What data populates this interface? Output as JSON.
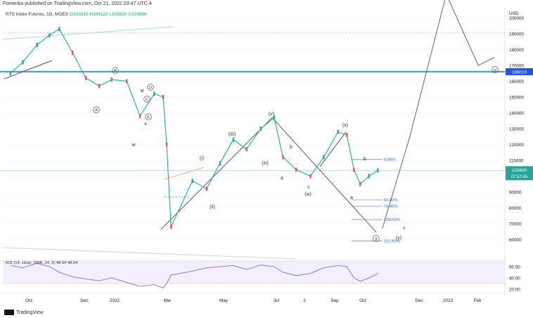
{
  "header": {
    "publisher": "Fomenka published on TradingView.com, Oct 21, 2022 03:47 UTC-4",
    "symbol": "RTS Index Futures, 1D, MOEX",
    "ohlc": "O103310  H104110  L103010  C103600"
  },
  "footer": {
    "brand": "TradingView"
  },
  "chart_data": {
    "type": "candlestick",
    "title": "RTS Index Futures, 1D, MOEX",
    "currency": "USD",
    "yticks": [
      60000,
      70000,
      80000,
      90000,
      100000,
      110000,
      120000,
      130000,
      140000,
      150000,
      160000,
      170000,
      180000,
      190000,
      200000
    ],
    "ytick_labels": [
      "60000",
      "70000",
      "80000",
      "90000",
      "100000",
      "110000",
      "120000",
      "130000",
      "140000",
      "150000",
      "160000",
      "170000",
      "180000",
      "190000",
      "200000"
    ],
    "ylim": [
      57000,
      206000
    ],
    "xticks": [
      "Oct",
      "Dec",
      "2022",
      "Mar",
      "May",
      "Jul",
      "2",
      "Sep",
      "Oct",
      "Dec",
      "2023",
      "Feb"
    ],
    "price_series": {
      "name": "RTS Index Futures",
      "dates": [
        "2021-09-01",
        "2021-09-15",
        "2021-10-01",
        "2021-10-15",
        "2021-10-26",
        "2021-11-10",
        "2021-11-25",
        "2021-12-10",
        "2021-12-24",
        "2022-01-10",
        "2022-01-25",
        "2022-02-10",
        "2022-02-20",
        "2022-02-24",
        "2022-03-01",
        "2022-03-25",
        "2022-04-10",
        "2022-04-25",
        "2022-05-10",
        "2022-05-25",
        "2022-06-10",
        "2022-06-25",
        "2022-07-05",
        "2022-07-20",
        "2022-08-05",
        "2022-08-20",
        "2022-09-05",
        "2022-09-15",
        "2022-09-23",
        "2022-09-30",
        "2022-10-10",
        "2022-10-20"
      ],
      "values": [
        165000,
        172000,
        183000,
        189000,
        193000,
        178000,
        162000,
        157000,
        161000,
        160000,
        138000,
        152000,
        150000,
        120000,
        68000,
        97000,
        92000,
        108000,
        123000,
        117000,
        130000,
        137000,
        112000,
        104000,
        100000,
        112000,
        128000,
        126000,
        104000,
        95000,
        100000,
        103600
      ]
    },
    "last_price": "103600",
    "countdown": "07:57:45",
    "resistance_level": "166010",
    "fib_levels": [
      {
        "label": "0.00%",
        "price": 110500
      },
      {
        "label": "61.80%",
        "price": 85000
      },
      {
        "label": "76.40%",
        "price": 81000
      },
      {
        "label": "100.00%",
        "price": 72500
      },
      {
        "label": "161.80%",
        "price": 59000
      }
    ],
    "wave_labels": [
      "A",
      "B",
      "C",
      "D",
      "E",
      "w",
      "x",
      "w",
      "(i)",
      "(ii)",
      "(III)",
      "(iv)",
      "(v)",
      "a",
      "b",
      "c",
      "(w)",
      "(x)",
      "(y)",
      "a",
      "b",
      "c",
      "ii",
      "iv"
    ],
    "projection_path": {
      "dates": [
        "2022-10-25",
        "2022-11-25",
        "2023-01-05",
        "2023-02-10",
        "2023-02-28"
      ],
      "values": [
        67000,
        125000,
        215000,
        170000,
        175000
      ]
    },
    "indicator": {
      "label": "RSI (14, close, SMA, 14, 2)  48.04  48.04",
      "yticks": [
        "60.00",
        "40.00",
        "20.00"
      ],
      "band": [
        30,
        70
      ],
      "rsi_values": [
        62,
        58,
        66,
        60,
        50,
        42,
        38,
        35,
        40,
        32,
        25,
        28,
        22,
        30,
        45,
        52,
        58,
        60,
        62,
        55,
        63,
        60,
        50,
        44,
        48,
        58,
        62,
        60,
        40,
        34,
        40,
        48
      ]
    }
  }
}
